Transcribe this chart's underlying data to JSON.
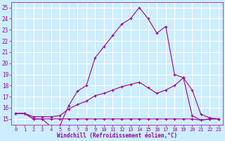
{
  "xlabel": "Windchill (Refroidissement éolien,°C)",
  "background_color": "#cceeff",
  "line_color": "#990099",
  "grid_color": "#ffffff",
  "xlim": [
    -0.5,
    23.5
  ],
  "ylim": [
    14.5,
    25.5
  ],
  "yticks": [
    15,
    16,
    17,
    18,
    19,
    20,
    21,
    22,
    23,
    24,
    25
  ],
  "xticks": [
    0,
    1,
    2,
    3,
    4,
    5,
    6,
    7,
    8,
    9,
    10,
    11,
    12,
    13,
    14,
    15,
    16,
    17,
    18,
    19,
    20,
    21,
    22,
    23
  ],
  "line1_x": [
    0,
    1,
    2,
    3,
    4,
    5,
    6,
    7,
    8,
    9,
    10,
    11,
    12,
    13,
    14,
    15,
    16,
    17,
    18,
    19,
    20,
    21,
    22,
    23
  ],
  "line1_y": [
    15.5,
    15.5,
    15.0,
    15.0,
    14.3,
    14.4,
    16.2,
    17.5,
    18.0,
    20.5,
    21.5,
    22.5,
    23.5,
    24.0,
    25.0,
    24.0,
    22.7,
    23.3,
    19.0,
    18.7,
    15.3,
    14.9,
    15.0,
    15.0
  ],
  "line2_x": [
    0,
    1,
    2,
    3,
    4,
    5,
    6,
    7,
    8,
    9,
    10,
    11,
    12,
    13,
    14,
    15,
    16,
    17,
    18,
    19,
    20,
    21,
    22,
    23
  ],
  "line2_y": [
    15.5,
    15.5,
    15.0,
    15.0,
    15.0,
    15.0,
    15.0,
    15.0,
    15.0,
    15.0,
    15.0,
    15.0,
    15.0,
    15.0,
    15.0,
    15.0,
    15.0,
    15.0,
    15.0,
    15.0,
    15.0,
    14.9,
    15.0,
    15.0
  ],
  "line3_x": [
    0,
    1,
    2,
    3,
    4,
    5,
    6,
    7,
    8,
    9,
    10,
    11,
    12,
    13,
    14,
    15,
    16,
    17,
    18,
    19,
    20,
    21,
    22,
    23
  ],
  "line3_y": [
    15.5,
    15.5,
    15.2,
    15.2,
    15.2,
    15.3,
    15.9,
    16.3,
    16.6,
    17.1,
    17.3,
    17.6,
    17.9,
    18.1,
    18.3,
    17.8,
    17.3,
    17.6,
    18.0,
    18.7,
    17.6,
    15.4,
    15.1,
    15.0
  ]
}
